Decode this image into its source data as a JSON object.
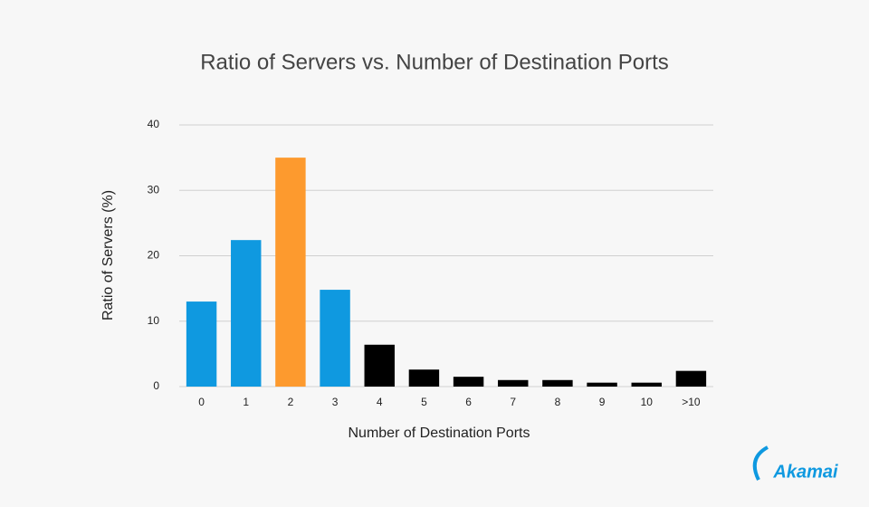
{
  "chart_data": {
    "type": "bar",
    "title": "Ratio of Servers vs. Number of Destination Ports",
    "x_label": "Number of Destination Ports",
    "y_label": "Ratio of Servers (%)",
    "categories": [
      "0",
      "1",
      "2",
      "3",
      "4",
      "5",
      "6",
      "7",
      "8",
      "9",
      "10",
      ">10"
    ],
    "values": [
      13.0,
      22.4,
      35.0,
      14.8,
      6.4,
      2.6,
      1.5,
      1.0,
      1.0,
      0.6,
      0.6,
      2.4
    ],
    "colors": [
      "#0f99e0",
      "#0f99e0",
      "#fd9a2e",
      "#0f99e0",
      "#000000",
      "#000000",
      "#000000",
      "#000000",
      "#000000",
      "#000000",
      "#000000",
      "#000000"
    ],
    "ylim": [
      0,
      40
    ],
    "yticks": [
      0,
      10,
      20,
      30,
      40
    ],
    "grid": true
  },
  "logo": "Akamai"
}
